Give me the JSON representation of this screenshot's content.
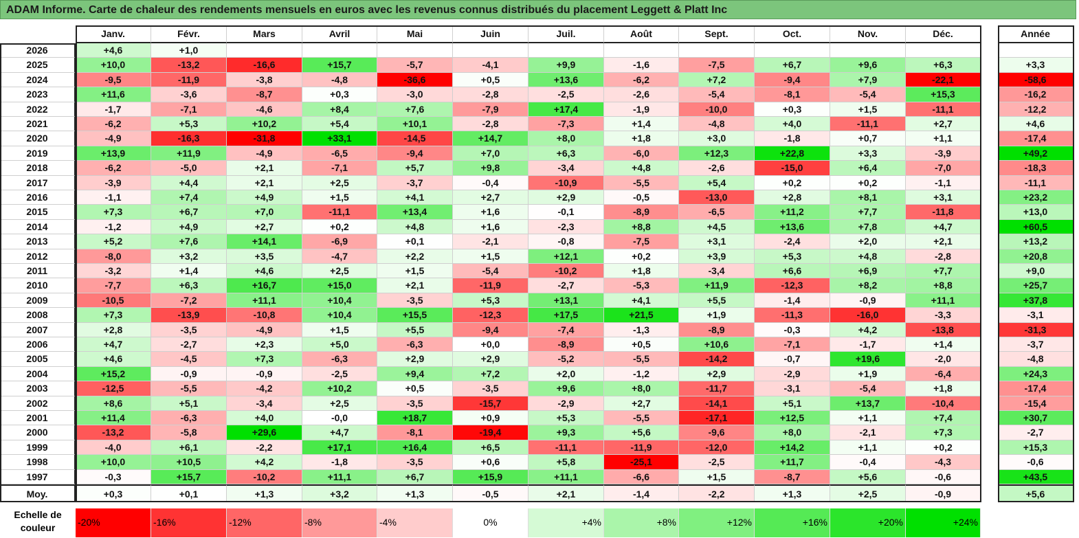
{
  "title": "ADAM Informe. Carte de chaleur des rendements mensuels en euros avec les revenus connus distribués du placement Leggett & Platt Inc",
  "chart_data": {
    "type": "heatmap",
    "columns": [
      "Janv.",
      "Févr.",
      "Mars",
      "Avril",
      "Mai",
      "Juin",
      "Juil.",
      "Août",
      "Sept.",
      "Oct.",
      "Nov.",
      "Déc."
    ],
    "year_column_label": "Année",
    "rows": [
      {
        "year": "2026",
        "months": [
          "+4,6",
          "+1,0",
          "",
          "",
          "",
          "",
          "",
          "",
          "",
          "",
          "",
          ""
        ],
        "annual": ""
      },
      {
        "year": "2025",
        "months": [
          "+10,0",
          "-13,2",
          "-16,6",
          "+15,7",
          "-5,7",
          "-4,1",
          "+9,9",
          "-1,6",
          "-7,5",
          "+6,7",
          "+9,6",
          "+6,3"
        ],
        "annual": "+3,3"
      },
      {
        "year": "2024",
        "months": [
          "-9,5",
          "-11,9",
          "-3,8",
          "-4,8",
          "-36,6",
          "+0,5",
          "+13,6",
          "-6,2",
          "+7,2",
          "-9,4",
          "+7,9",
          "-22,1"
        ],
        "annual": "-58,6"
      },
      {
        "year": "2023",
        "months": [
          "+11,6",
          "-3,6",
          "-8,7",
          "+0,3",
          "-3,0",
          "-2,8",
          "-2,5",
          "-2,6",
          "-5,4",
          "-8,1",
          "-5,4",
          "+15,3"
        ],
        "annual": "-16,2"
      },
      {
        "year": "2022",
        "months": [
          "-1,7",
          "-7,1",
          "-4,6",
          "+8,4",
          "+7,6",
          "-7,9",
          "+17,4",
          "-1,9",
          "-10,0",
          "+0,3",
          "+1,5",
          "-11,1"
        ],
        "annual": "-12,2"
      },
      {
        "year": "2021",
        "months": [
          "-6,2",
          "+5,3",
          "+10,2",
          "+5,4",
          "+10,1",
          "-2,8",
          "-7,3",
          "+1,4",
          "-4,8",
          "+4,0",
          "-11,1",
          "+2,7"
        ],
        "annual": "+4,6"
      },
      {
        "year": "2020",
        "months": [
          "-4,9",
          "-16,3",
          "-31,8",
          "+33,1",
          "-14,5",
          "+14,7",
          "+8,0",
          "+1,8",
          "+3,0",
          "-1,8",
          "+0,7",
          "+1,1"
        ],
        "annual": "-17,4"
      },
      {
        "year": "2019",
        "months": [
          "+13,9",
          "+11,9",
          "-4,9",
          "-6,5",
          "-9,4",
          "+7,0",
          "+6,3",
          "-6,0",
          "+12,3",
          "+22,8",
          "+3,3",
          "-3,9"
        ],
        "annual": "+49,2"
      },
      {
        "year": "2018",
        "months": [
          "-6,2",
          "-5,0",
          "+2,1",
          "-7,1",
          "+5,7",
          "+9,8",
          "-3,4",
          "+4,8",
          "-2,6",
          "-15,0",
          "+6,4",
          "-7,0"
        ],
        "annual": "-18,3"
      },
      {
        "year": "2017",
        "months": [
          "-3,9",
          "+4,4",
          "+2,1",
          "+2,5",
          "-3,7",
          "-0,4",
          "-10,9",
          "-5,5",
          "+5,4",
          "+0,2",
          "+0,2",
          "-1,1"
        ],
        "annual": "-11,1"
      },
      {
        "year": "2016",
        "months": [
          "-1,1",
          "+7,4",
          "+4,9",
          "+1,5",
          "+4,1",
          "+2,7",
          "+2,9",
          "-0,5",
          "-13,0",
          "+2,8",
          "+8,1",
          "+3,1"
        ],
        "annual": "+23,2"
      },
      {
        "year": "2015",
        "months": [
          "+7,3",
          "+6,7",
          "+7,0",
          "-11,1",
          "+13,4",
          "+1,6",
          "-0,1",
          "-8,9",
          "-6,5",
          "+11,2",
          "+7,7",
          "-11,8"
        ],
        "annual": "+13,0"
      },
      {
        "year": "2014",
        "months": [
          "-1,2",
          "+4,9",
          "+2,7",
          "+0,2",
          "+4,8",
          "+1,6",
          "-2,3",
          "+8,8",
          "+4,5",
          "+13,6",
          "+7,8",
          "+4,7"
        ],
        "annual": "+60,5"
      },
      {
        "year": "2013",
        "months": [
          "+5,2",
          "+7,6",
          "+14,1",
          "-6,9",
          "+0,1",
          "-2,1",
          "-0,8",
          "-7,5",
          "+3,1",
          "-2,4",
          "+2,0",
          "+2,1"
        ],
        "annual": "+13,2"
      },
      {
        "year": "2012",
        "months": [
          "-8,0",
          "+3,2",
          "+3,5",
          "-4,7",
          "+2,2",
          "+1,5",
          "+12,1",
          "+0,2",
          "+3,9",
          "+5,3",
          "+4,8",
          "-2,8"
        ],
        "annual": "+20,8"
      },
      {
        "year": "2011",
        "months": [
          "-3,2",
          "+1,4",
          "+4,6",
          "+2,5",
          "+1,5",
          "-5,4",
          "-10,2",
          "+1,8",
          "-3,4",
          "+6,6",
          "+6,9",
          "+7,7"
        ],
        "annual": "+9,0"
      },
      {
        "year": "2010",
        "months": [
          "-7,7",
          "+6,3",
          "+16,7",
          "+15,0",
          "+2,1",
          "-11,9",
          "-2,7",
          "-5,3",
          "+11,9",
          "-12,3",
          "+8,2",
          "+8,8"
        ],
        "annual": "+25,7"
      },
      {
        "year": "2009",
        "months": [
          "-10,5",
          "-7,2",
          "+11,1",
          "+10,4",
          "-3,5",
          "+5,3",
          "+13,1",
          "+4,1",
          "+5,5",
          "-1,4",
          "-0,9",
          "+11,1"
        ],
        "annual": "+37,8"
      },
      {
        "year": "2008",
        "months": [
          "+7,3",
          "-13,9",
          "-10,8",
          "+10,4",
          "+15,5",
          "-12,3",
          "+17,5",
          "+21,5",
          "+1,9",
          "-11,3",
          "-16,0",
          "-3,3"
        ],
        "annual": "-3,1"
      },
      {
        "year": "2007",
        "months": [
          "+2,8",
          "-3,5",
          "-4,9",
          "+1,5",
          "+5,5",
          "-9,4",
          "-7,4",
          "-1,3",
          "-8,9",
          "-0,3",
          "+4,2",
          "-13,8"
        ],
        "annual": "-31,3"
      },
      {
        "year": "2006",
        "months": [
          "+4,7",
          "-2,7",
          "+2,3",
          "+5,0",
          "-6,3",
          "+0,0",
          "-8,9",
          "+0,5",
          "+10,6",
          "-7,1",
          "-1,7",
          "+1,4"
        ],
        "annual": "-3,7"
      },
      {
        "year": "2005",
        "months": [
          "+4,6",
          "-4,5",
          "+7,3",
          "-6,3",
          "+2,9",
          "+2,9",
          "-5,2",
          "-5,5",
          "-14,2",
          "-0,7",
          "+19,6",
          "-2,0"
        ],
        "annual": "-4,8"
      },
      {
        "year": "2004",
        "months": [
          "+15,2",
          "-0,9",
          "-0,9",
          "-2,5",
          "+9,4",
          "+7,2",
          "+2,0",
          "-1,2",
          "+2,9",
          "-2,9",
          "+1,9",
          "-6,4"
        ],
        "annual": "+24,3"
      },
      {
        "year": "2003",
        "months": [
          "-12,5",
          "-5,5",
          "-4,2",
          "+10,2",
          "+0,5",
          "-3,5",
          "+9,6",
          "+8,0",
          "-11,7",
          "-3,1",
          "-5,4",
          "+1,8"
        ],
        "annual": "-17,4"
      },
      {
        "year": "2002",
        "months": [
          "+8,6",
          "+5,1",
          "-3,4",
          "+2,5",
          "-3,5",
          "-15,7",
          "-2,9",
          "+2,7",
          "-14,1",
          "+5,1",
          "+13,7",
          "-10,4"
        ],
        "annual": "-15,4"
      },
      {
        "year": "2001",
        "months": [
          "+11,4",
          "-6,3",
          "+4,0",
          "-0,0",
          "+18,7",
          "+0,9",
          "+5,3",
          "-5,5",
          "-17,1",
          "+12,5",
          "+1,1",
          "+7,4"
        ],
        "annual": "+30,7"
      },
      {
        "year": "2000",
        "months": [
          "-13,2",
          "-5,8",
          "+29,6",
          "+4,7",
          "-8,1",
          "-19,4",
          "+9,3",
          "+5,6",
          "-9,6",
          "+8,0",
          "-2,1",
          "+7,3"
        ],
        "annual": "-2,7"
      },
      {
        "year": "1999",
        "months": [
          "-4,0",
          "+6,1",
          "-2,2",
          "+17,1",
          "+16,4",
          "+6,5",
          "-11,1",
          "-11,9",
          "-12,0",
          "+14,2",
          "+1,1",
          "+0,2"
        ],
        "annual": "+15,3"
      },
      {
        "year": "1998",
        "months": [
          "+10,0",
          "+10,5",
          "+4,2",
          "-1,8",
          "-3,5",
          "+0,6",
          "+5,8",
          "-25,1",
          "-2,5",
          "+11,7",
          "-0,4",
          "-4,3"
        ],
        "annual": "-0,6"
      },
      {
        "year": "1997",
        "months": [
          "-0,3",
          "+15,7",
          "-10,2",
          "+11,1",
          "+6,7",
          "+15,9",
          "+11,1",
          "-6,6",
          "+1,5",
          "-8,7",
          "+5,6",
          "-0,6"
        ],
        "annual": "+43,5"
      }
    ],
    "average": {
      "label": "Moy.",
      "months": [
        "+0,3",
        "+0,1",
        "+1,3",
        "+3,2",
        "+1,3",
        "-0,5",
        "+2,1",
        "-1,4",
        "-2,2",
        "+1,3",
        "+2,5",
        "-0,9"
      ],
      "annual": "+5,6"
    },
    "scale": {
      "label": "Echelle de couleur",
      "stops": [
        {
          "label": "-20%",
          "value": -20
        },
        {
          "label": "-16%",
          "value": -16
        },
        {
          "label": "-12%",
          "value": -12
        },
        {
          "label": "-8%",
          "value": -8
        },
        {
          "label": "-4%",
          "value": -4
        },
        {
          "label": "0%",
          "value": 0
        },
        {
          "label": "+4%",
          "value": 4
        },
        {
          "label": "+8%",
          "value": 8
        },
        {
          "label": "+12%",
          "value": 12
        },
        {
          "label": "+16%",
          "value": 16
        },
        {
          "label": "+20%",
          "value": 20
        },
        {
          "label": "+24%",
          "value": 24
        }
      ]
    },
    "colors": {
      "negative": "#ff0000",
      "neutral": "#ffffff",
      "positive": "#00e000"
    }
  }
}
